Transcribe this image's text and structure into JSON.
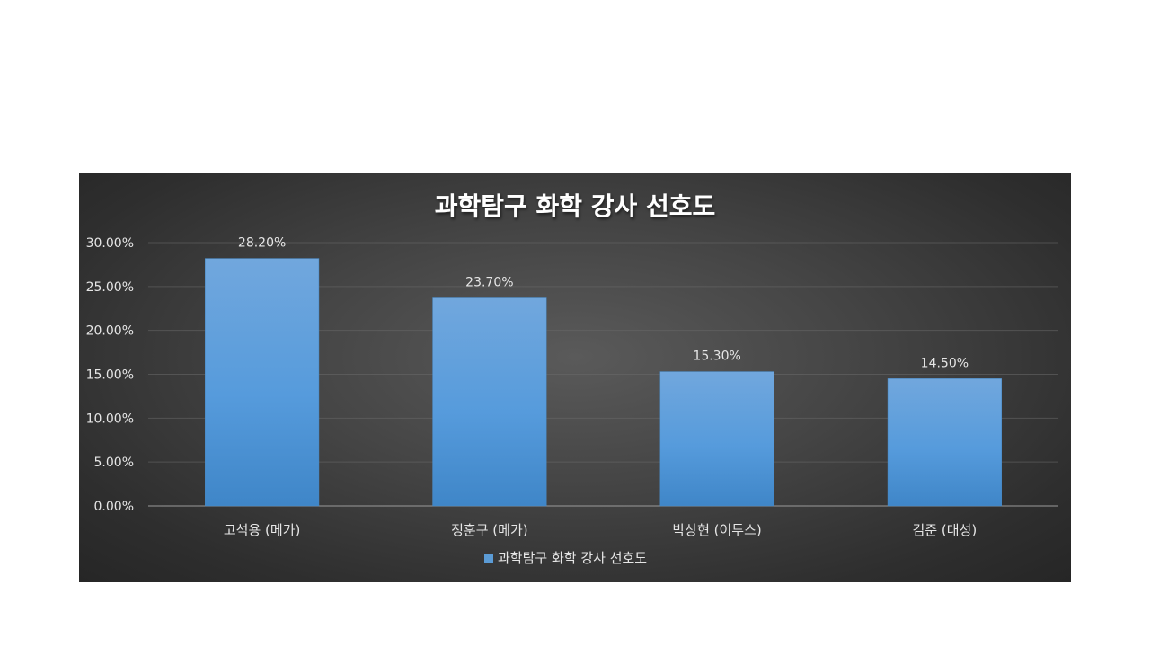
{
  "chart_data": {
    "type": "bar",
    "title": "과학탐구 화학 강사 선호도",
    "categories": [
      "고석용 (메가)",
      "정훈구 (메가)",
      "박상현 (이투스)",
      "김준 (대성)"
    ],
    "series": [
      {
        "name": "과학탐구 화학 강사 선호도",
        "values": [
          28.2,
          23.7,
          15.3,
          14.5
        ],
        "data_labels": [
          "28.20%",
          "23.70%",
          "15.30%",
          "14.50%"
        ],
        "color": "#5b9bd5"
      }
    ],
    "xlabel": "",
    "ylabel": "",
    "ylim": [
      0,
      30
    ],
    "y_ticks": [
      {
        "value": 0,
        "label": "0.00%"
      },
      {
        "value": 5,
        "label": "5.00%"
      },
      {
        "value": 10,
        "label": "10.00%"
      },
      {
        "value": 15,
        "label": "15.00%"
      },
      {
        "value": 20,
        "label": "20.00%"
      },
      {
        "value": 25,
        "label": "25.00%"
      },
      {
        "value": 30,
        "label": "30.00%"
      }
    ],
    "grid": true,
    "legend_position": "bottom"
  }
}
